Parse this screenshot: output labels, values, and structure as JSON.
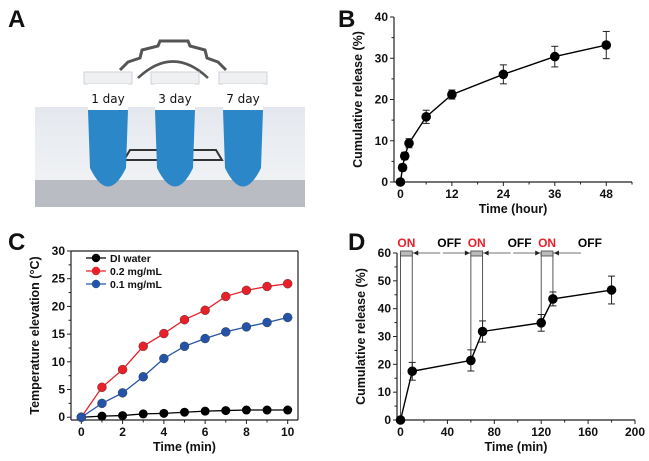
{
  "panels": {
    "A": {
      "letter": "A",
      "tube_labels": [
        "1 day",
        "3 day",
        "7 day"
      ],
      "liquid_color": "#2b87c8"
    },
    "B": {
      "letter": "B"
    },
    "C": {
      "letter": "C"
    },
    "D": {
      "letter": "D"
    }
  },
  "chart_data": [
    {
      "panel": "B",
      "type": "line",
      "xlabel": "Time (hour)",
      "ylabel": "Cumulative release (%)",
      "xlim": [
        -1.5,
        54
      ],
      "ylim": [
        0,
        40
      ],
      "xticks": [
        0,
        12,
        24,
        36,
        48
      ],
      "yticks": [
        0,
        10,
        20,
        30,
        40
      ],
      "grid": false,
      "series": [
        {
          "x": [
            0,
            0.5,
            1,
            2,
            6,
            12,
            24,
            36,
            48
          ],
          "y": [
            0,
            3.5,
            6.3,
            9.4,
            15.8,
            21.2,
            26.1,
            30.4,
            33.2
          ],
          "err": [
            0,
            0.8,
            0.9,
            1.1,
            1.6,
            1.1,
            2.3,
            2.5,
            3.3
          ],
          "color": "#000000"
        }
      ]
    },
    {
      "panel": "C",
      "type": "line",
      "xlabel": "Time (min)",
      "ylabel": "Temperature elevation (°C)",
      "xlim": [
        -0.5,
        10.5
      ],
      "ylim": [
        -0.5,
        30
      ],
      "xticks": [
        0,
        2,
        4,
        6,
        8,
        10
      ],
      "yticks": [
        0,
        5,
        10,
        15,
        20,
        25,
        30
      ],
      "grid": false,
      "legend": "top-left",
      "x": [
        0,
        1,
        2,
        3,
        4,
        5,
        6,
        7,
        8,
        9,
        10
      ],
      "series": [
        {
          "name": "DI water",
          "color": "#000000",
          "values": [
            0,
            0.2,
            0.3,
            0.6,
            0.7,
            0.9,
            1.1,
            1.2,
            1.3,
            1.3,
            1.3
          ]
        },
        {
          "name": "0.2 mg/mL",
          "color": "#e8202a",
          "values": [
            0,
            5.4,
            8.6,
            12.8,
            15.1,
            17.6,
            19.3,
            21.8,
            22.9,
            23.6,
            24.1
          ]
        },
        {
          "name": "0.1 mg/mL",
          "color": "#2453a8",
          "values": [
            0,
            2.5,
            4.4,
            7.3,
            10.6,
            12.8,
            14.2,
            15.4,
            16.3,
            17.1,
            18.0
          ]
        }
      ]
    },
    {
      "panel": "D",
      "type": "line",
      "xlabel": "Time (min)",
      "ylabel": "Cumulative release (%)",
      "xlim": [
        -3,
        200
      ],
      "ylim": [
        0,
        60
      ],
      "xticks": [
        0,
        40,
        80,
        120,
        160,
        200
      ],
      "yticks": [
        0,
        10,
        20,
        30,
        40,
        50,
        60
      ],
      "grid": false,
      "series": [
        {
          "x": [
            0,
            10,
            60,
            70,
            120,
            130,
            180
          ],
          "y": [
            0,
            17.5,
            21.4,
            31.8,
            34.9,
            43.5,
            46.7
          ],
          "err": [
            0,
            3.2,
            3.8,
            3.8,
            3.0,
            2.5,
            5.0
          ],
          "color": "#000000"
        }
      ],
      "on_intervals": [
        [
          0,
          10
        ],
        [
          60,
          70
        ],
        [
          120,
          130
        ]
      ],
      "annotations": [
        {
          "text": "ON",
          "color": "#e8202a"
        },
        {
          "text": "OFF",
          "color": "#000000"
        },
        {
          "text": "ON",
          "color": "#e8202a"
        },
        {
          "text": "OFF",
          "color": "#000000"
        },
        {
          "text": "ON",
          "color": "#e8202a"
        },
        {
          "text": "OFF",
          "color": "#000000"
        }
      ]
    }
  ]
}
